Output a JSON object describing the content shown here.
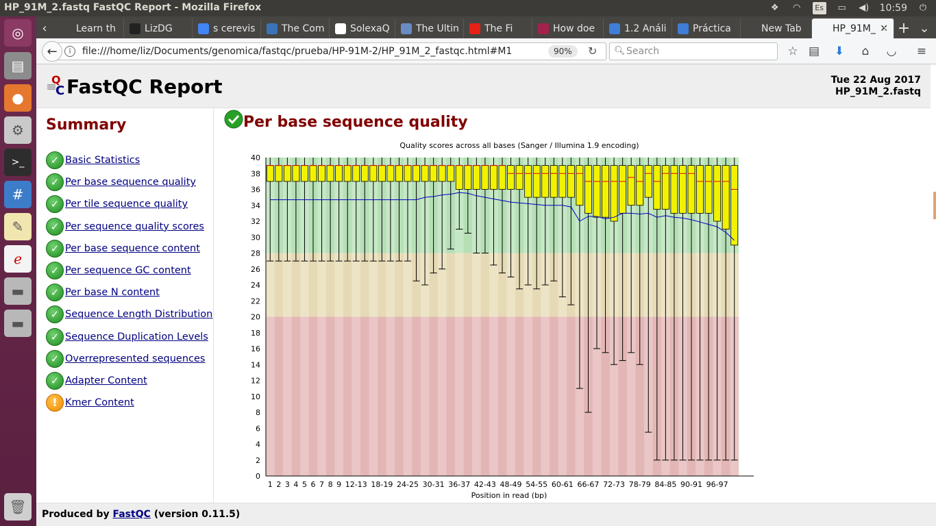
{
  "top_panel": {
    "window_title": "HP_91M_2.fastq FastQC Report - Mozilla Firefox",
    "keyboard_layout": "Es",
    "clock": "10:59",
    "icons": [
      "dropbox-icon",
      "wifi-icon",
      "keyboard-icon",
      "battery-icon",
      "volume-icon",
      "power-icon"
    ]
  },
  "launcher": {
    "items": [
      "ubuntu-dash-icon",
      "files-icon",
      "firefox-icon",
      "settings-icon",
      "terminal-icon",
      "app-icon",
      "text-editor-icon",
      "pdf-viewer-icon",
      "drive-icon",
      "drive-icon"
    ]
  },
  "tabs": [
    {
      "label": "Learn th",
      "favicon_color": "#464542"
    },
    {
      "label": "LizDG",
      "favicon_color": "#222222"
    },
    {
      "label": "s cerevis",
      "favicon_color": "#4285f4"
    },
    {
      "label": "The Com",
      "favicon_color": "#3b73b9"
    },
    {
      "label": "SolexaQ",
      "favicon_color": "#ffffff"
    },
    {
      "label": "The Ultin",
      "favicon_color": "#6b8cc2"
    },
    {
      "label": "The Fi",
      "favicon_color": "#e62117"
    },
    {
      "label": "How doe",
      "favicon_color": "#a3224d"
    },
    {
      "label": "1.2 Análi",
      "favicon_color": "#3f7dd8"
    },
    {
      "label": "Práctica",
      "favicon_color": "#3f7dd8"
    },
    {
      "label": "New Tab",
      "favicon_color": "#464542"
    },
    {
      "label": "HP_91M_",
      "favicon_color": "#f5f6f7",
      "active": true
    }
  ],
  "navbar": {
    "url": "file:///home/liz/Documents/genomica/fastqc/prueba/HP-91M-2/HP_91M_2_fastqc.html#M1",
    "zoom": "90%",
    "search_placeholder": "Search"
  },
  "report": {
    "title": "FastQC Report",
    "date": "Tue 22 Aug 2017",
    "filename": "HP_91M_2.fastq",
    "summary_title": "Summary",
    "summary_items": [
      {
        "label": "Basic Statistics",
        "status": "pass"
      },
      {
        "label": "Per base sequence quality",
        "status": "pass"
      },
      {
        "label": "Per tile sequence quality",
        "status": "pass"
      },
      {
        "label": "Per sequence quality scores",
        "status": "pass"
      },
      {
        "label": "Per base sequence content",
        "status": "pass"
      },
      {
        "label": "Per sequence GC content",
        "status": "pass"
      },
      {
        "label": "Per base N content",
        "status": "pass"
      },
      {
        "label": "Sequence Length Distribution",
        "status": "pass"
      },
      {
        "label": "Sequence Duplication Levels",
        "status": "pass"
      },
      {
        "label": "Overrepresented sequences",
        "status": "pass"
      },
      {
        "label": "Adapter Content",
        "status": "pass"
      },
      {
        "label": "Kmer Content",
        "status": "warn"
      }
    ],
    "module_title": "Per base sequence quality",
    "footer_prefix": "Produced by",
    "footer_link": "FastQC",
    "footer_suffix": "(version 0.11.5)"
  },
  "chart_data": {
    "type": "boxplot",
    "title": "Quality scores across all bases (Sanger / Illumina 1.9 encoding)",
    "xlabel": "Position in read (bp)",
    "ylabel": "",
    "ylim": [
      0,
      40
    ],
    "yticks": [
      0,
      2,
      4,
      6,
      8,
      10,
      12,
      14,
      16,
      18,
      20,
      22,
      24,
      26,
      28,
      30,
      32,
      34,
      36,
      38,
      40
    ],
    "quality_bands": [
      {
        "from": 28,
        "to": 40,
        "color": "#c6e8c6",
        "color_alt": "#b6dfb6"
      },
      {
        "from": 20,
        "to": 28,
        "color": "#ede4c6",
        "color_alt": "#e6dab6"
      },
      {
        "from": 0,
        "to": 20,
        "color": "#eac6c6",
        "color_alt": "#e3b6b6"
      }
    ],
    "box_color": "#f2f200",
    "median_color": "#e00000",
    "mean_line_color": "#0000c0",
    "categories": [
      "1",
      "2",
      "3",
      "4",
      "5",
      "6",
      "7",
      "8",
      "9",
      "10-11",
      "12-13",
      "14-15",
      "16-17",
      "18-19",
      "20-21",
      "22-23",
      "24-25",
      "26-27",
      "28-29",
      "30-31",
      "32-33",
      "34-35",
      "36-37",
      "38-39",
      "40-41",
      "42-43",
      "44-45",
      "46-47",
      "48-49",
      "50-51",
      "52-53",
      "54-55",
      "56-57",
      "58-59",
      "60-61",
      "62-63",
      "64-65",
      "66-67",
      "68-69",
      "70-71",
      "72-73",
      "74-75",
      "76-77",
      "78-79",
      "80-81",
      "82-83",
      "84-85",
      "86-87",
      "88-89",
      "90-91",
      "92-93",
      "94-95",
      "96-97",
      "98-99",
      "100-101"
    ],
    "xtick_labels": [
      "1",
      "2",
      "3",
      "4",
      "5",
      "6",
      "7",
      "8",
      "9",
      "12-13",
      "18-19",
      "24-25",
      "30-31",
      "36-37",
      "42-43",
      "48-49",
      "54-55",
      "60-61",
      "66-67",
      "72-73",
      "78-79",
      "84-85",
      "90-91",
      "96-97"
    ],
    "xtick_indices": [
      0,
      1,
      2,
      3,
      4,
      5,
      6,
      7,
      8,
      10,
      13,
      16,
      19,
      22,
      25,
      28,
      31,
      34,
      37,
      40,
      43,
      46,
      49,
      52
    ],
    "q1": [
      37,
      37,
      37,
      37,
      37,
      37,
      37,
      37,
      37,
      37,
      37,
      37,
      37,
      37,
      37,
      37,
      37,
      37,
      37,
      37,
      37,
      37,
      36,
      36,
      36,
      36,
      36,
      36,
      36,
      36,
      35,
      35,
      35,
      35,
      35,
      35,
      34,
      33,
      32.5,
      32.5,
      32,
      33,
      34,
      34,
      35,
      33.5,
      33.5,
      33,
      33,
      33,
      33,
      33,
      32,
      31,
      29
    ],
    "median": [
      39,
      39,
      39,
      39,
      39,
      39,
      39,
      39,
      39,
      39,
      39,
      39,
      39,
      39,
      39,
      39,
      39,
      39,
      39,
      39,
      39,
      39,
      39,
      39,
      39,
      39,
      39,
      39,
      38,
      38,
      38,
      38,
      38,
      38,
      38,
      38,
      38,
      37,
      37,
      37,
      37,
      37,
      37.5,
      37,
      38,
      37,
      38,
      38,
      38,
      38,
      37,
      37,
      37,
      37,
      36
    ],
    "q3": [
      39,
      39,
      39,
      39,
      39,
      39,
      39,
      39,
      39,
      39,
      39,
      39,
      39,
      39,
      39,
      39,
      39,
      39,
      39,
      39,
      39,
      39,
      39,
      39,
      39,
      39,
      39,
      39,
      39,
      39,
      39,
      39,
      39,
      39,
      39,
      39,
      39,
      39,
      39,
      39,
      39,
      39,
      39,
      39,
      39,
      39,
      39,
      39,
      39,
      39,
      39,
      39,
      39,
      39,
      39
    ],
    "whisker_low": [
      27,
      27,
      27,
      27,
      27,
      27,
      27,
      27,
      27,
      27,
      27,
      27,
      27,
      27,
      27,
      27,
      27,
      24.5,
      24,
      25.5,
      26,
      28.5,
      31,
      30.5,
      28,
      28,
      26.5,
      25.5,
      25,
      23.5,
      24,
      23.5,
      24,
      24.5,
      22.5,
      21.5,
      11,
      8,
      16,
      15.5,
      14,
      14.5,
      15.5,
      14,
      5.5,
      2,
      2,
      2,
      2,
      2,
      2,
      2,
      2,
      2,
      2
    ],
    "whisker_high": [
      40,
      40,
      40,
      40,
      40,
      40,
      40,
      40,
      40,
      40,
      40,
      40,
      40,
      40,
      40,
      40,
      40,
      40,
      40,
      40,
      40,
      40,
      40,
      40,
      40,
      40,
      40,
      40,
      40,
      40,
      40,
      40,
      40,
      40,
      40,
      40,
      40,
      40,
      40,
      40,
      40,
      40,
      40,
      40,
      40,
      40,
      40,
      40,
      40,
      40,
      40,
      40,
      40,
      40,
      40
    ],
    "mean": [
      34.7,
      34.7,
      34.7,
      34.7,
      34.7,
      34.7,
      34.7,
      34.7,
      34.7,
      34.7,
      34.7,
      34.7,
      34.7,
      34.7,
      34.7,
      34.7,
      34.7,
      34.7,
      35.0,
      35.1,
      35.3,
      35.4,
      35.6,
      35.5,
      35.2,
      35.0,
      34.8,
      34.6,
      34.4,
      34.3,
      34.2,
      34.1,
      34.0,
      34.0,
      34.0,
      33.8,
      32.0,
      32.6,
      32.6,
      32.3,
      32.5,
      33.0,
      33.0,
      32.9,
      33.0,
      32.5,
      32.7,
      32.5,
      32.4,
      32.2,
      31.9,
      31.6,
      31.3,
      30.6,
      29.6
    ]
  }
}
